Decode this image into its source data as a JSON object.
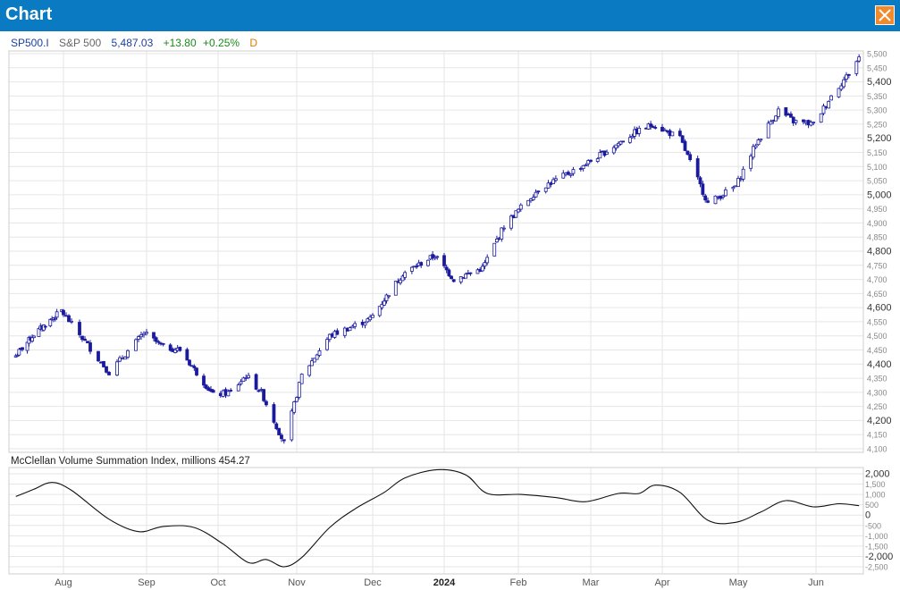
{
  "window": {
    "title": "Chart"
  },
  "quote": {
    "symbol": "SP500.I",
    "name": "S&P 500",
    "last": "5,487.03",
    "change": "+13.80",
    "change_pct": "+0.25%",
    "interval": "D"
  },
  "colors": {
    "titlebar": "#0a7bc2",
    "close_button": "#f28a2b",
    "candle": "#1a1a9e",
    "volume_line": "#111111",
    "symbol_text": "#1a3f9e",
    "change_text": "#1a8a1a",
    "interval_text": "#e07b00",
    "grid": "#e6e6e6"
  },
  "icons": {
    "close": "close-icon"
  },
  "chart_data": [
    {
      "type": "candlestick",
      "title": "",
      "series": [
        {
          "name": "SP500.I"
        }
      ],
      "ylim": [
        4100,
        5500
      ],
      "y_ticks": [
        "5,500",
        "5,450",
        "5,400",
        "5,350",
        "5,300",
        "5,250",
        "5,200",
        "5,150",
        "5,100",
        "5,050",
        "5,000",
        "4,950",
        "4,900",
        "4,850",
        "4,800",
        "4,750",
        "4,700",
        "4,650",
        "4,600",
        "4,550",
        "4,500",
        "4,450",
        "4,400",
        "4,350",
        "4,300",
        "4,250",
        "4,200",
        "4,150",
        "4,100"
      ],
      "y_ticks_major": [
        "5,400",
        "5,200",
        "5,000",
        "4,800",
        "4,600",
        "4,400",
        "4,200"
      ],
      "x_ticks": [
        "Aug",
        "Sep",
        "Oct",
        "Nov",
        "Dec",
        "2024",
        "Feb",
        "Mar",
        "Apr",
        "May",
        "Jun"
      ],
      "grid": true,
      "approx_daily_close": [
        {
          "date": "2023-07-03",
          "value": 4430
        },
        {
          "date": "2023-07-14",
          "value": 4505
        },
        {
          "date": "2023-07-31",
          "value": 4590
        },
        {
          "date": "2023-08-18",
          "value": 4370
        },
        {
          "date": "2023-08-31",
          "value": 4510
        },
        {
          "date": "2023-09-08",
          "value": 4460
        },
        {
          "date": "2023-09-15",
          "value": 4450
        },
        {
          "date": "2023-09-29",
          "value": 4290
        },
        {
          "date": "2023-10-06",
          "value": 4300
        },
        {
          "date": "2023-10-12",
          "value": 4360
        },
        {
          "date": "2023-10-18",
          "value": 4300
        },
        {
          "date": "2023-10-27",
          "value": 4120
        },
        {
          "date": "2023-11-03",
          "value": 4360
        },
        {
          "date": "2023-11-14",
          "value": 4500
        },
        {
          "date": "2023-11-30",
          "value": 4560
        },
        {
          "date": "2023-12-14",
          "value": 4720
        },
        {
          "date": "2023-12-28",
          "value": 4785
        },
        {
          "date": "2024-01-05",
          "value": 4700
        },
        {
          "date": "2024-01-17",
          "value": 4740
        },
        {
          "date": "2024-01-26",
          "value": 4890
        },
        {
          "date": "2024-02-09",
          "value": 5020
        },
        {
          "date": "2024-02-22",
          "value": 5080
        },
        {
          "date": "2024-03-07",
          "value": 5150
        },
        {
          "date": "2024-03-20",
          "value": 5220
        },
        {
          "date": "2024-03-28",
          "value": 5250
        },
        {
          "date": "2024-04-08",
          "value": 5200
        },
        {
          "date": "2024-04-19",
          "value": 4970
        },
        {
          "date": "2024-04-30",
          "value": 5030
        },
        {
          "date": "2024-05-08",
          "value": 5180
        },
        {
          "date": "2024-05-17",
          "value": 5300
        },
        {
          "date": "2024-05-23",
          "value": 5260
        },
        {
          "date": "2024-05-31",
          "value": 5250
        },
        {
          "date": "2024-06-07",
          "value": 5350
        },
        {
          "date": "2024-06-14",
          "value": 5430
        },
        {
          "date": "2024-06-18",
          "value": 5487
        }
      ]
    },
    {
      "type": "line",
      "title": "McClellan Volume Summation Index, millions 454.27",
      "series": [
        {
          "name": "McClellan Volume Summation Index"
        }
      ],
      "ylim": [
        -2500,
        2000
      ],
      "y_ticks": [
        "2,000",
        "1,500",
        "1,000",
        "500",
        "0",
        "-500",
        "-1,000",
        "-1,500",
        "-2,000",
        "-2,500"
      ],
      "y_ticks_major": [
        "2,000",
        "0",
        "-2,000"
      ],
      "x_ticks": [
        "Aug",
        "Sep",
        "Oct",
        "Nov",
        "Dec",
        "2024",
        "Feb",
        "Mar",
        "Apr",
        "May",
        "Jun"
      ],
      "grid": true,
      "points": [
        {
          "date": "2023-07-03",
          "value": 900
        },
        {
          "date": "2023-07-14",
          "value": 1250
        },
        {
          "date": "2023-07-25",
          "value": 1580
        },
        {
          "date": "2023-08-04",
          "value": 1200
        },
        {
          "date": "2023-08-18",
          "value": -200
        },
        {
          "date": "2023-08-29",
          "value": -800
        },
        {
          "date": "2023-09-08",
          "value": -550
        },
        {
          "date": "2023-09-21",
          "value": -600
        },
        {
          "date": "2023-10-03",
          "value": -1400
        },
        {
          "date": "2023-10-13",
          "value": -2300
        },
        {
          "date": "2023-10-20",
          "value": -2150
        },
        {
          "date": "2023-10-27",
          "value": -2500
        },
        {
          "date": "2023-11-03",
          "value": -2050
        },
        {
          "date": "2023-11-14",
          "value": -600
        },
        {
          "date": "2023-11-24",
          "value": 300
        },
        {
          "date": "2023-12-06",
          "value": 1100
        },
        {
          "date": "2023-12-15",
          "value": 1800
        },
        {
          "date": "2023-12-29",
          "value": 2200
        },
        {
          "date": "2024-01-10",
          "value": 1950
        },
        {
          "date": "2024-01-19",
          "value": 1050
        },
        {
          "date": "2024-02-02",
          "value": 1000
        },
        {
          "date": "2024-02-16",
          "value": 850
        },
        {
          "date": "2024-02-28",
          "value": 650
        },
        {
          "date": "2024-03-13",
          "value": 1050
        },
        {
          "date": "2024-03-22",
          "value": 1050
        },
        {
          "date": "2024-03-29",
          "value": 1450
        },
        {
          "date": "2024-04-08",
          "value": 1100
        },
        {
          "date": "2024-04-19",
          "value": -250
        },
        {
          "date": "2024-04-30",
          "value": -350
        },
        {
          "date": "2024-05-10",
          "value": 150
        },
        {
          "date": "2024-05-20",
          "value": 700
        },
        {
          "date": "2024-05-31",
          "value": 400
        },
        {
          "date": "2024-06-10",
          "value": 550
        },
        {
          "date": "2024-06-18",
          "value": 454
        }
      ]
    }
  ]
}
